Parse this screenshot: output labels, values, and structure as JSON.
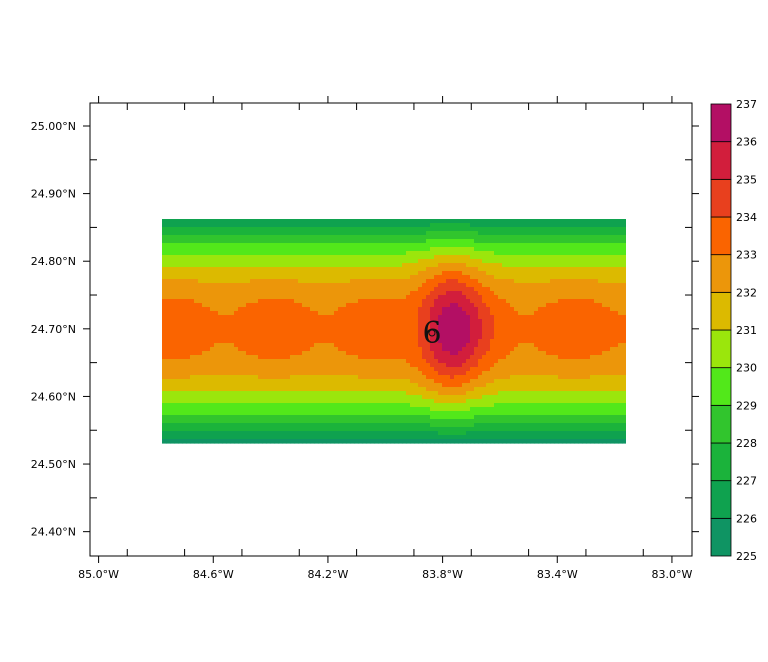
{
  "chart_data": {
    "type": "heatmap",
    "title": "",
    "xlabel": "",
    "ylabel": "",
    "xlim": [
      -85.03,
      -82.93
    ],
    "ylim": [
      24.364,
      25.034
    ],
    "x_ticks": [
      {
        "value": -85.0,
        "label": "85.0°W"
      },
      {
        "value": -84.6,
        "label": "84.6°W"
      },
      {
        "value": -84.2,
        "label": "84.2°W"
      },
      {
        "value": -83.8,
        "label": "83.8°W"
      },
      {
        "value": -83.4,
        "label": "83.4°W"
      },
      {
        "value": -83.0,
        "label": "83.0°W"
      }
    ],
    "y_ticks": [
      {
        "value": 25.0,
        "label": "25.00°N"
      },
      {
        "value": 24.9,
        "label": "24.90°N"
      },
      {
        "value": 24.8,
        "label": "24.80°N"
      },
      {
        "value": 24.7,
        "label": "24.70°N"
      },
      {
        "value": 24.6,
        "label": "24.60°N"
      },
      {
        "value": 24.5,
        "label": "24.50°N"
      },
      {
        "value": 24.4,
        "label": "24.40°N"
      }
    ],
    "data_extent": {
      "lon": [
        -84.78,
        -83.08
      ],
      "lat": [
        24.535,
        24.863
      ]
    },
    "center": {
      "lon": -83.77,
      "lat": 24.7
    },
    "storm_symbol": "6",
    "field_description_note_removed": true,
    "colorbar": {
      "levels": [
        225,
        226,
        227,
        228,
        229,
        230,
        231,
        232,
        233,
        234,
        235,
        236,
        237
      ],
      "colors": [
        "#0f9463",
        "#0fa24f",
        "#1bb33b",
        "#31c52d",
        "#52e81a",
        "#9be60c",
        "#dcba00",
        "#ec960a",
        "#fa6400",
        "#e8401e",
        "#d21e3c",
        "#b30f64"
      ],
      "labels": [
        "225",
        "226",
        "227",
        "228",
        "229",
        "230",
        "231",
        "232",
        "233",
        "234",
        "235",
        "236",
        "237"
      ]
    },
    "grid": false,
    "legend_placement": "right"
  }
}
